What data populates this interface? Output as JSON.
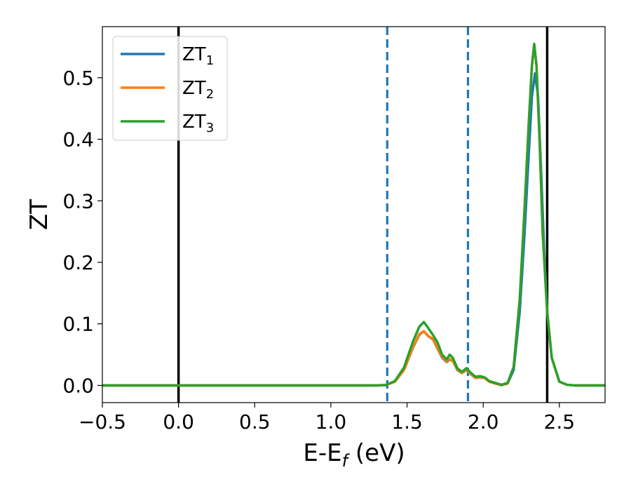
{
  "chart_data": {
    "type": "line",
    "xlabel": "E-E",
    "xlabel_sub": "f",
    "xlabel_unit": " (eV)",
    "ylabel": "ZT",
    "xlim": [
      -0.5,
      2.8
    ],
    "ylim": [
      -0.028,
      0.583
    ],
    "xticks": [
      -0.5,
      0.0,
      0.5,
      1.0,
      1.5,
      2.0,
      2.5
    ],
    "xtick_labels": [
      "−0.5",
      "0.0",
      "0.5",
      "1.0",
      "1.5",
      "2.0",
      "2.5"
    ],
    "yticks": [
      0.0,
      0.1,
      0.2,
      0.3,
      0.4,
      0.5
    ],
    "ytick_labels": [
      "0.0",
      "0.1",
      "0.2",
      "0.3",
      "0.4",
      "0.5"
    ],
    "grid": false,
    "legend_position": "top-left",
    "vlines": [
      {
        "x": 0.0,
        "style": "solid",
        "color": "#000000"
      },
      {
        "x": 2.42,
        "style": "solid",
        "color": "#000000"
      },
      {
        "x": 1.37,
        "style": "dashed",
        "color": "#1f77b4"
      },
      {
        "x": 1.9,
        "style": "dashed",
        "color": "#1f77b4"
      }
    ],
    "series": [
      {
        "name": "ZT",
        "sub": "1",
        "color": "#1f77b4",
        "x": [
          -0.5,
          1.3,
          1.36,
          1.42,
          1.48,
          1.54,
          1.58,
          1.61,
          1.64,
          1.67,
          1.7,
          1.73,
          1.76,
          1.78,
          1.8,
          1.83,
          1.86,
          1.89,
          1.92,
          1.95,
          1.98,
          2.01,
          2.04,
          2.08,
          2.12,
          2.16,
          2.2,
          2.24,
          2.27,
          2.3,
          2.32,
          2.34,
          2.36,
          2.38,
          2.4,
          2.42,
          2.45,
          2.5,
          2.55,
          2.6,
          2.7,
          2.82
        ],
        "y": [
          0.0,
          0.0,
          0.0005,
          0.006,
          0.025,
          0.062,
          0.082,
          0.088,
          0.08,
          0.075,
          0.06,
          0.045,
          0.038,
          0.042,
          0.04,
          0.025,
          0.02,
          0.025,
          0.018,
          0.012,
          0.013,
          0.012,
          0.006,
          0.003,
          0.0005,
          0.003,
          0.025,
          0.12,
          0.24,
          0.38,
          0.47,
          0.507,
          0.47,
          0.35,
          0.22,
          0.12,
          0.045,
          0.006,
          0.001,
          0.0,
          0.0,
          0.0
        ]
      },
      {
        "name": "ZT",
        "sub": "2",
        "color": "#ff7f0e",
        "x": [
          -0.5,
          1.3,
          1.36,
          1.42,
          1.48,
          1.54,
          1.58,
          1.61,
          1.64,
          1.67,
          1.7,
          1.73,
          1.76,
          1.78,
          1.8,
          1.83,
          1.86,
          1.89,
          1.92,
          1.95,
          1.98,
          2.01,
          2.04,
          2.08,
          2.12,
          2.16,
          2.2,
          2.24,
          2.27,
          2.3,
          2.32,
          2.335,
          2.35,
          2.37,
          2.39,
          2.42,
          2.45,
          2.5,
          2.55,
          2.6,
          2.7,
          2.82
        ],
        "y": [
          0.0,
          0.0,
          0.0005,
          0.006,
          0.025,
          0.063,
          0.083,
          0.088,
          0.08,
          0.076,
          0.061,
          0.046,
          0.039,
          0.043,
          0.04,
          0.026,
          0.02,
          0.026,
          0.018,
          0.012,
          0.013,
          0.012,
          0.006,
          0.003,
          0.0005,
          0.003,
          0.03,
          0.14,
          0.28,
          0.43,
          0.52,
          0.553,
          0.52,
          0.4,
          0.25,
          0.12,
          0.045,
          0.006,
          0.001,
          0.0,
          0.0,
          0.0
        ]
      },
      {
        "name": "ZT",
        "sub": "3",
        "color": "#2ca02c",
        "x": [
          -0.5,
          1.3,
          1.36,
          1.42,
          1.48,
          1.54,
          1.58,
          1.61,
          1.64,
          1.67,
          1.7,
          1.73,
          1.76,
          1.78,
          1.8,
          1.83,
          1.86,
          1.89,
          1.92,
          1.95,
          1.98,
          2.01,
          2.04,
          2.08,
          2.12,
          2.16,
          2.2,
          2.24,
          2.27,
          2.3,
          2.32,
          2.335,
          2.35,
          2.37,
          2.39,
          2.42,
          2.45,
          2.5,
          2.55,
          2.6,
          2.7,
          2.82
        ],
        "y": [
          0.0,
          0.0,
          0.0006,
          0.007,
          0.029,
          0.072,
          0.095,
          0.103,
          0.093,
          0.082,
          0.07,
          0.05,
          0.042,
          0.05,
          0.045,
          0.028,
          0.022,
          0.028,
          0.02,
          0.014,
          0.015,
          0.013,
          0.007,
          0.004,
          0.001,
          0.004,
          0.03,
          0.14,
          0.28,
          0.43,
          0.52,
          0.555,
          0.52,
          0.4,
          0.25,
          0.12,
          0.045,
          0.006,
          0.001,
          0.0,
          0.0,
          0.0
        ]
      }
    ]
  }
}
